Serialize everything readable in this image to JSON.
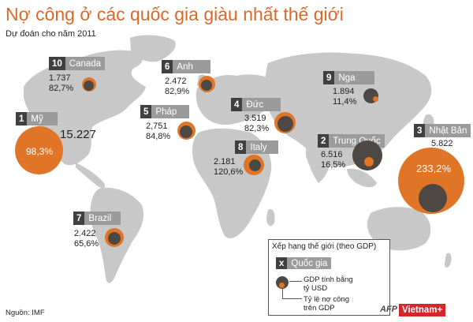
{
  "title": "Nợ công ở các quốc gia giàu nhất thế giới",
  "subtitle": "Dự đoán cho năm 2011",
  "source": "Nguồn: IMF",
  "logos": {
    "afp": "AFP",
    "vietnamplus": "Vietnam+"
  },
  "colors": {
    "title": "#d9692b",
    "debt": "#e07527",
    "gdp": "#4d4843",
    "land": "#c8c8c8",
    "rank_box": "#404040",
    "name_box": "#9b9b9b"
  },
  "legend": {
    "heading": "Xếp hạng thế giới (theo GDP)",
    "sample_rank": "x",
    "sample_name": "Quốc gia",
    "gdp_text": "GDP tính bằng\ntỷ USD",
    "debt_text": "Tỷ lệ nợ công\ntrên GDP"
  },
  "countries": [
    {
      "rank": "1",
      "name": "Mỹ",
      "gdp": "15.227",
      "debt": "98,3%",
      "gdp_bn_usd": 15227,
      "debt_pct": 98.3
    },
    {
      "rank": "2",
      "name": "Trung Quốc",
      "gdp": "6.516",
      "debt": "16,5%",
      "gdp_bn_usd": 6516,
      "debt_pct": 16.5
    },
    {
      "rank": "3",
      "name": "Nhật Bản",
      "gdp": "5.822",
      "debt": "233,2%",
      "gdp_bn_usd": 5822,
      "debt_pct": 233.2
    },
    {
      "rank": "4",
      "name": "Đức",
      "gdp": "3.519",
      "debt": "82,3%",
      "gdp_bn_usd": 3519,
      "debt_pct": 82.3
    },
    {
      "rank": "5",
      "name": "Pháp",
      "gdp": "2,751",
      "debt": "84,8%",
      "gdp_bn_usd": 2751,
      "debt_pct": 84.8
    },
    {
      "rank": "6",
      "name": "Anh",
      "gdp": "2.472",
      "debt": "82,9%",
      "gdp_bn_usd": 2472,
      "debt_pct": 82.9
    },
    {
      "rank": "7",
      "name": "Brazil",
      "gdp": "2.422",
      "debt": "65,6%",
      "gdp_bn_usd": 2422,
      "debt_pct": 65.6
    },
    {
      "rank": "8",
      "name": "Italy",
      "gdp": "2.181",
      "debt": "120,6%",
      "gdp_bn_usd": 2181,
      "debt_pct": 120.6
    },
    {
      "rank": "9",
      "name": "Nga",
      "gdp": "1.894",
      "debt": "11,4%",
      "gdp_bn_usd": 1894,
      "debt_pct": 11.4
    },
    {
      "rank": "10",
      "name": "Canada",
      "gdp": "1.737",
      "debt": "82,7%",
      "gdp_bn_usd": 1737,
      "debt_pct": 82.7
    }
  ]
}
